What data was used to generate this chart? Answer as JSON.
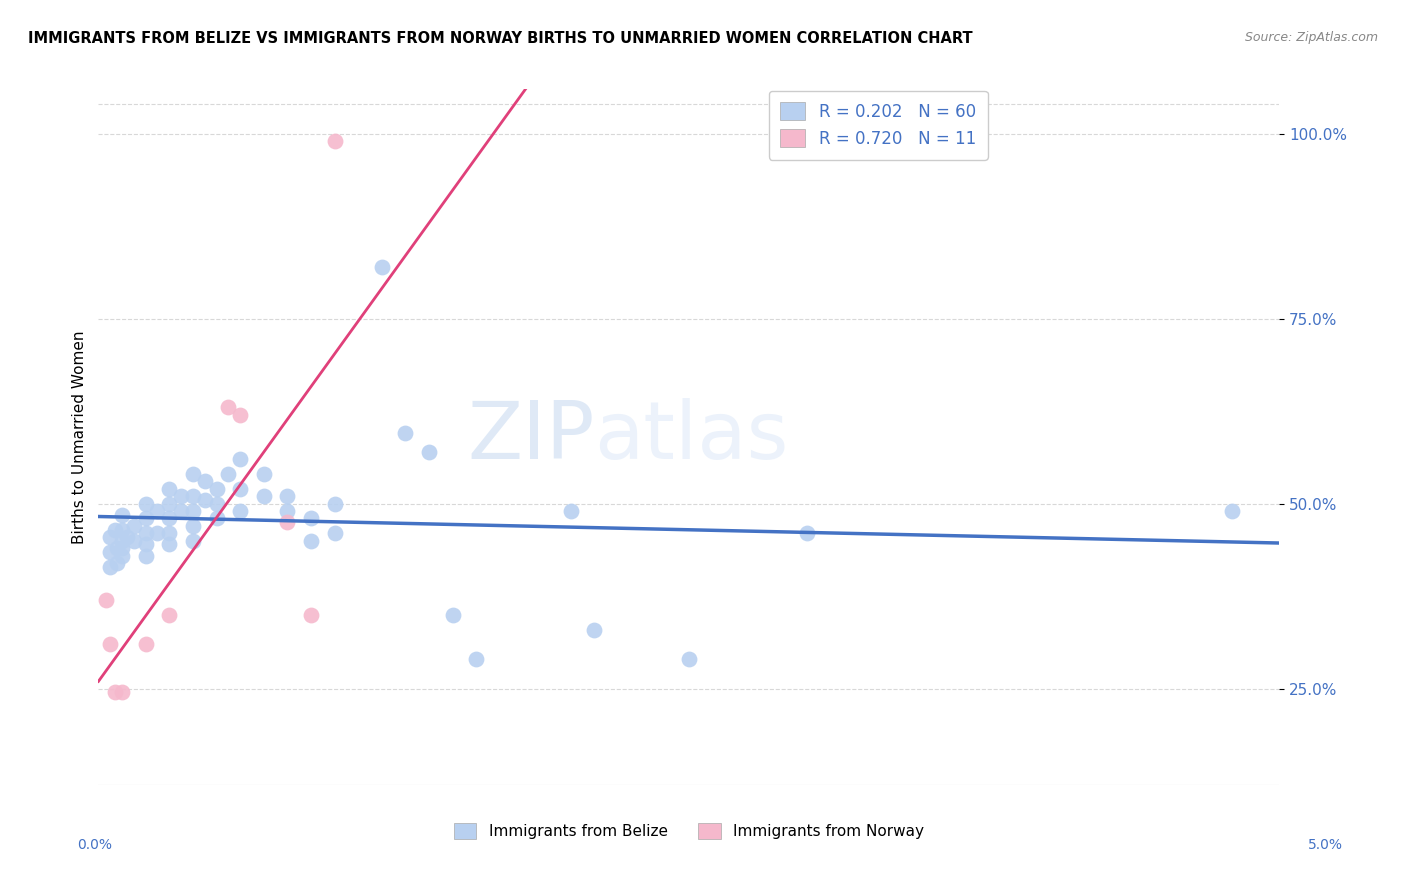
{
  "title": "IMMIGRANTS FROM BELIZE VS IMMIGRANTS FROM NORWAY BIRTHS TO UNMARRIED WOMEN CORRELATION CHART",
  "source": "Source: ZipAtlas.com",
  "ylabel": "Births to Unmarried Women",
  "xmin": 0.0,
  "xmax": 0.05,
  "ymin": 0.12,
  "ymax": 1.06,
  "yticks": [
    0.25,
    0.5,
    0.75,
    1.0
  ],
  "ytick_labels": [
    "25.0%",
    "50.0%",
    "75.0%",
    "100.0%"
  ],
  "belize_color": "#b8d0f0",
  "norway_color": "#f5b8cc",
  "belize_R": 0.202,
  "belize_N": 60,
  "norway_R": 0.72,
  "norway_N": 11,
  "belize_line_color": "#4472c4",
  "norway_line_color": "#e0407a",
  "dashed_line_color": "#d8b0b0",
  "watermark": "ZIPatlas",
  "belize_scatter": [
    [
      0.0005,
      0.455
    ],
    [
      0.0005,
      0.435
    ],
    [
      0.0005,
      0.415
    ],
    [
      0.0007,
      0.465
    ],
    [
      0.0008,
      0.44
    ],
    [
      0.0008,
      0.42
    ],
    [
      0.001,
      0.485
    ],
    [
      0.001,
      0.465
    ],
    [
      0.001,
      0.45
    ],
    [
      0.001,
      0.44
    ],
    [
      0.001,
      0.43
    ],
    [
      0.0012,
      0.455
    ],
    [
      0.0015,
      0.47
    ],
    [
      0.0015,
      0.45
    ],
    [
      0.002,
      0.5
    ],
    [
      0.002,
      0.48
    ],
    [
      0.002,
      0.46
    ],
    [
      0.002,
      0.445
    ],
    [
      0.002,
      0.43
    ],
    [
      0.0025,
      0.49
    ],
    [
      0.0025,
      0.46
    ],
    [
      0.003,
      0.52
    ],
    [
      0.003,
      0.5
    ],
    [
      0.003,
      0.48
    ],
    [
      0.003,
      0.46
    ],
    [
      0.003,
      0.445
    ],
    [
      0.0035,
      0.51
    ],
    [
      0.0035,
      0.49
    ],
    [
      0.004,
      0.54
    ],
    [
      0.004,
      0.51
    ],
    [
      0.004,
      0.49
    ],
    [
      0.004,
      0.47
    ],
    [
      0.004,
      0.45
    ],
    [
      0.0045,
      0.53
    ],
    [
      0.0045,
      0.505
    ],
    [
      0.005,
      0.52
    ],
    [
      0.005,
      0.5
    ],
    [
      0.005,
      0.48
    ],
    [
      0.0055,
      0.54
    ],
    [
      0.006,
      0.56
    ],
    [
      0.006,
      0.52
    ],
    [
      0.006,
      0.49
    ],
    [
      0.007,
      0.54
    ],
    [
      0.007,
      0.51
    ],
    [
      0.008,
      0.51
    ],
    [
      0.008,
      0.49
    ],
    [
      0.009,
      0.48
    ],
    [
      0.009,
      0.45
    ],
    [
      0.01,
      0.5
    ],
    [
      0.01,
      0.46
    ],
    [
      0.012,
      0.82
    ],
    [
      0.013,
      0.595
    ],
    [
      0.014,
      0.57
    ],
    [
      0.015,
      0.35
    ],
    [
      0.016,
      0.29
    ],
    [
      0.02,
      0.49
    ],
    [
      0.021,
      0.33
    ],
    [
      0.025,
      0.29
    ],
    [
      0.03,
      0.46
    ],
    [
      0.048,
      0.49
    ]
  ],
  "norway_scatter": [
    [
      0.0003,
      0.37
    ],
    [
      0.0005,
      0.31
    ],
    [
      0.0007,
      0.245
    ],
    [
      0.001,
      0.245
    ],
    [
      0.002,
      0.31
    ],
    [
      0.003,
      0.35
    ],
    [
      0.0055,
      0.63
    ],
    [
      0.006,
      0.62
    ],
    [
      0.008,
      0.475
    ],
    [
      0.009,
      0.35
    ],
    [
      0.01,
      0.99
    ]
  ]
}
